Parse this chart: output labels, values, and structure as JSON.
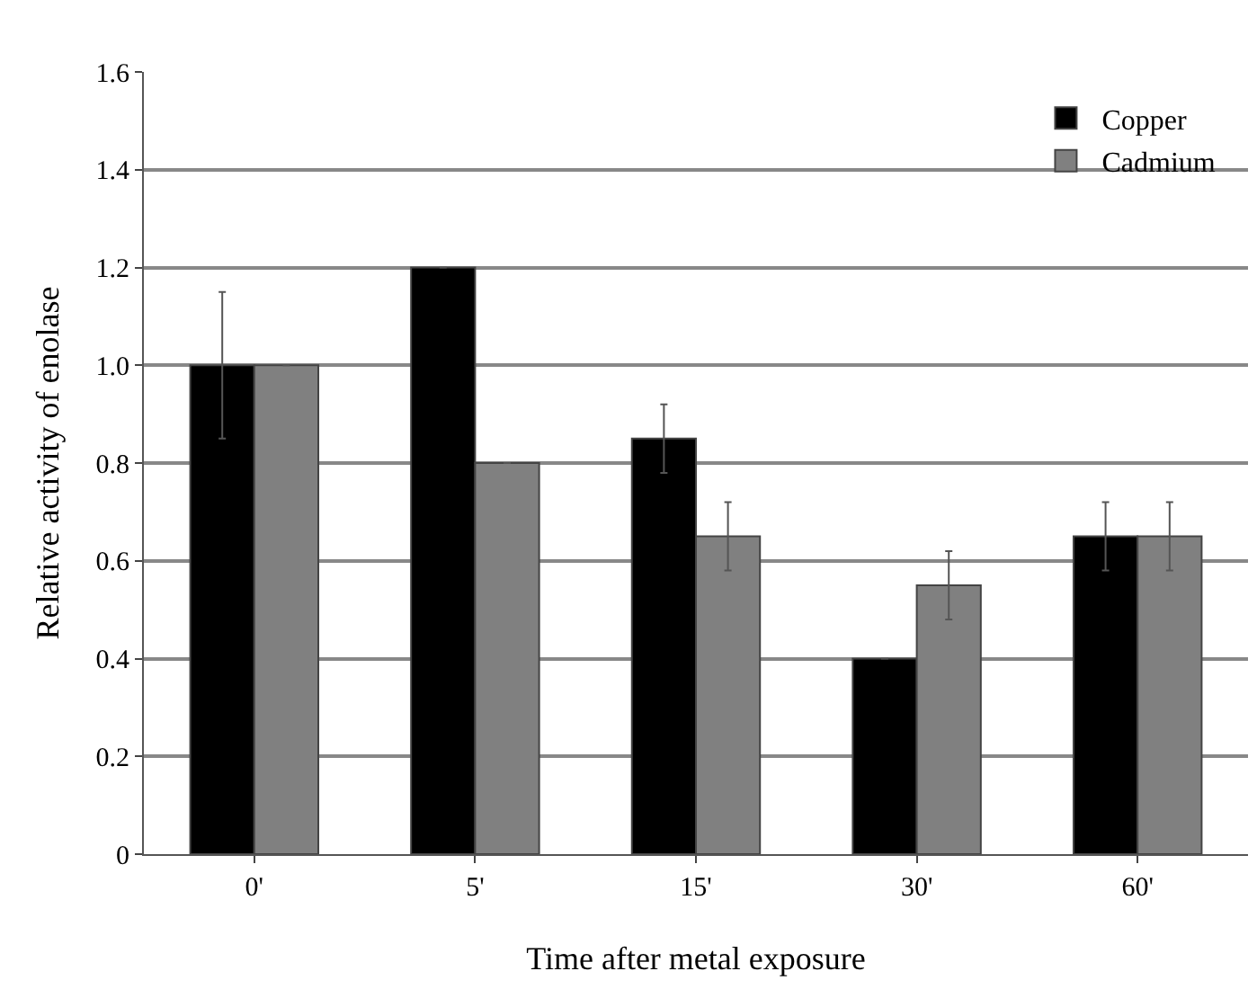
{
  "chart_data": {
    "type": "bar",
    "xlabel": "Time after metal exposure",
    "ylabel": "Relative activity of enolase",
    "categories": [
      "0'",
      "5'",
      "15'",
      "30'",
      "60'"
    ],
    "series": [
      {
        "name": "Copper",
        "color": "#000000",
        "values": [
          1.0,
          1.2,
          0.85,
          0.4,
          0.65
        ],
        "errors": [
          0.15,
          null,
          0.07,
          null,
          0.07
        ]
      },
      {
        "name": "Cadmium",
        "color": "#808080",
        "values": [
          1.0,
          0.8,
          0.65,
          0.55,
          0.65
        ],
        "errors": [
          null,
          null,
          0.07,
          0.07,
          0.07
        ]
      }
    ],
    "ylim": [
      0,
      1.6
    ],
    "yticks": [
      {
        "value": 0,
        "label": "0"
      },
      0.2,
      0.4,
      0.6,
      0.8,
      {
        "value": 1.0,
        "label": "1.0"
      },
      1.2,
      1.4,
      1.6
    ],
    "grid": "y",
    "legend": "top right"
  }
}
